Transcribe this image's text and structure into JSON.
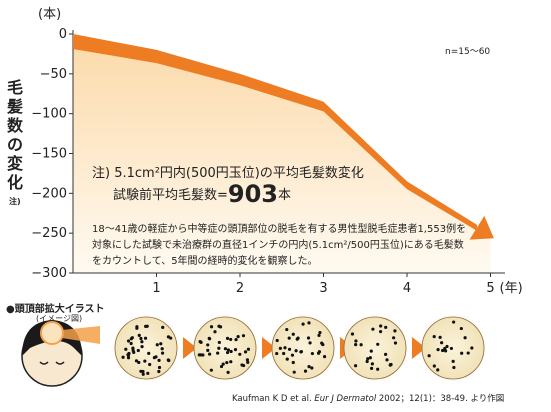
{
  "chart_data": {
    "type": "line",
    "x": [
      0,
      1,
      2,
      3,
      4,
      5
    ],
    "xticks": [
      "",
      "1",
      "2",
      "3",
      "4",
      "5"
    ],
    "xunit": "(年)",
    "y": [
      0,
      -20,
      -50,
      -85,
      -185,
      -250
    ],
    "ylim": [
      -300,
      0
    ],
    "yticks": [
      "0",
      "−50",
      "−100",
      "−150",
      "−200",
      "−250",
      "−300"
    ],
    "ytick_values": [
      0,
      -50,
      -100,
      -150,
      -200,
      -250,
      -300
    ],
    "yunit": "(本)",
    "ylabel_chars": [
      "毛",
      "髪",
      "数",
      "の",
      "変",
      "化"
    ],
    "ylabel_note": "注)",
    "n_label": "n=15〜60",
    "line_color": "#ee7c22",
    "fill_color": "#fdf0d8"
  },
  "note": {
    "title": "注) 5.1cm²円内(500円玉位)の平均毛髪数変化",
    "baseline_prefix": "試験前平均毛髪数=",
    "baseline_value": "903",
    "baseline_unit": "本"
  },
  "description": "18〜41歳の軽症から中等症の頭頂部位の脱毛を有する男性型脱毛症患者1,553例を対象にした試験で未治療群の直径1インチの円内(5.1cm²/500円玉位)にある毛髪数をカウントして、5年間の経時的変化を観察した。",
  "illustration": {
    "title": "●頭頂部拡大イラスト",
    "subtitle": "(イメージ図)",
    "circle_count": 5,
    "dot_counts": [
      46,
      40,
      33,
      25,
      20
    ]
  },
  "citation": {
    "authors": "Kaufman K D et al.",
    "journal": "Eur J Dermatol",
    "rest": "2002；12(1)：38-49. より作図"
  }
}
